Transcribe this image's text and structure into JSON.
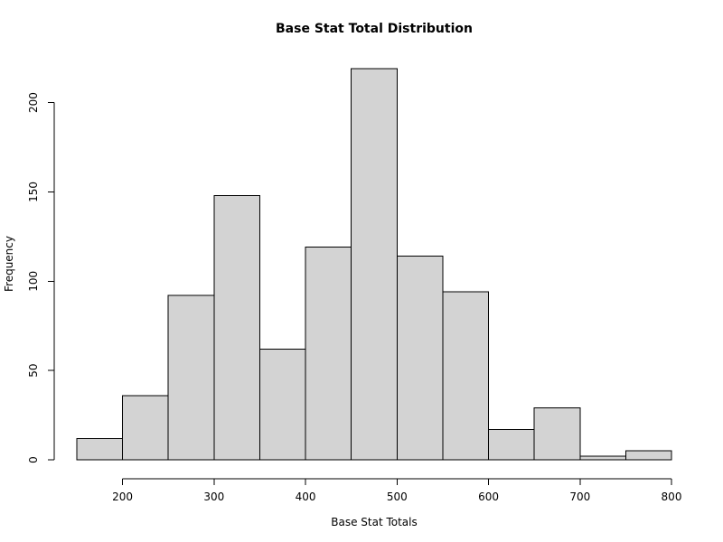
{
  "chart_data": {
    "type": "bar",
    "subtype": "histogram",
    "title": "Base Stat Total Distribution",
    "xlabel": "Base Stat Totals",
    "ylabel": "Frequency",
    "bins": [
      {
        "start": 150,
        "end": 200,
        "count": 12
      },
      {
        "start": 200,
        "end": 250,
        "count": 36
      },
      {
        "start": 250,
        "end": 300,
        "count": 92
      },
      {
        "start": 300,
        "end": 350,
        "count": 148
      },
      {
        "start": 350,
        "end": 400,
        "count": 62
      },
      {
        "start": 400,
        "end": 450,
        "count": 119
      },
      {
        "start": 450,
        "end": 500,
        "count": 219
      },
      {
        "start": 500,
        "end": 550,
        "count": 114
      },
      {
        "start": 550,
        "end": 600,
        "count": 94
      },
      {
        "start": 600,
        "end": 650,
        "count": 17
      },
      {
        "start": 650,
        "end": 700,
        "count": 29
      },
      {
        "start": 700,
        "end": 750,
        "count": 2
      },
      {
        "start": 750,
        "end": 800,
        "count": 5
      }
    ],
    "xlim": [
      150,
      800
    ],
    "ylim": [
      0,
      219
    ],
    "x_ticks": [
      "200",
      "300",
      "400",
      "500",
      "600",
      "700",
      "800"
    ],
    "y_ticks": [
      "0",
      "50",
      "100",
      "150",
      "200"
    ],
    "grid": false,
    "legend": "none",
    "bar_fill": "#d3d3d3",
    "bar_stroke": "#000000"
  }
}
